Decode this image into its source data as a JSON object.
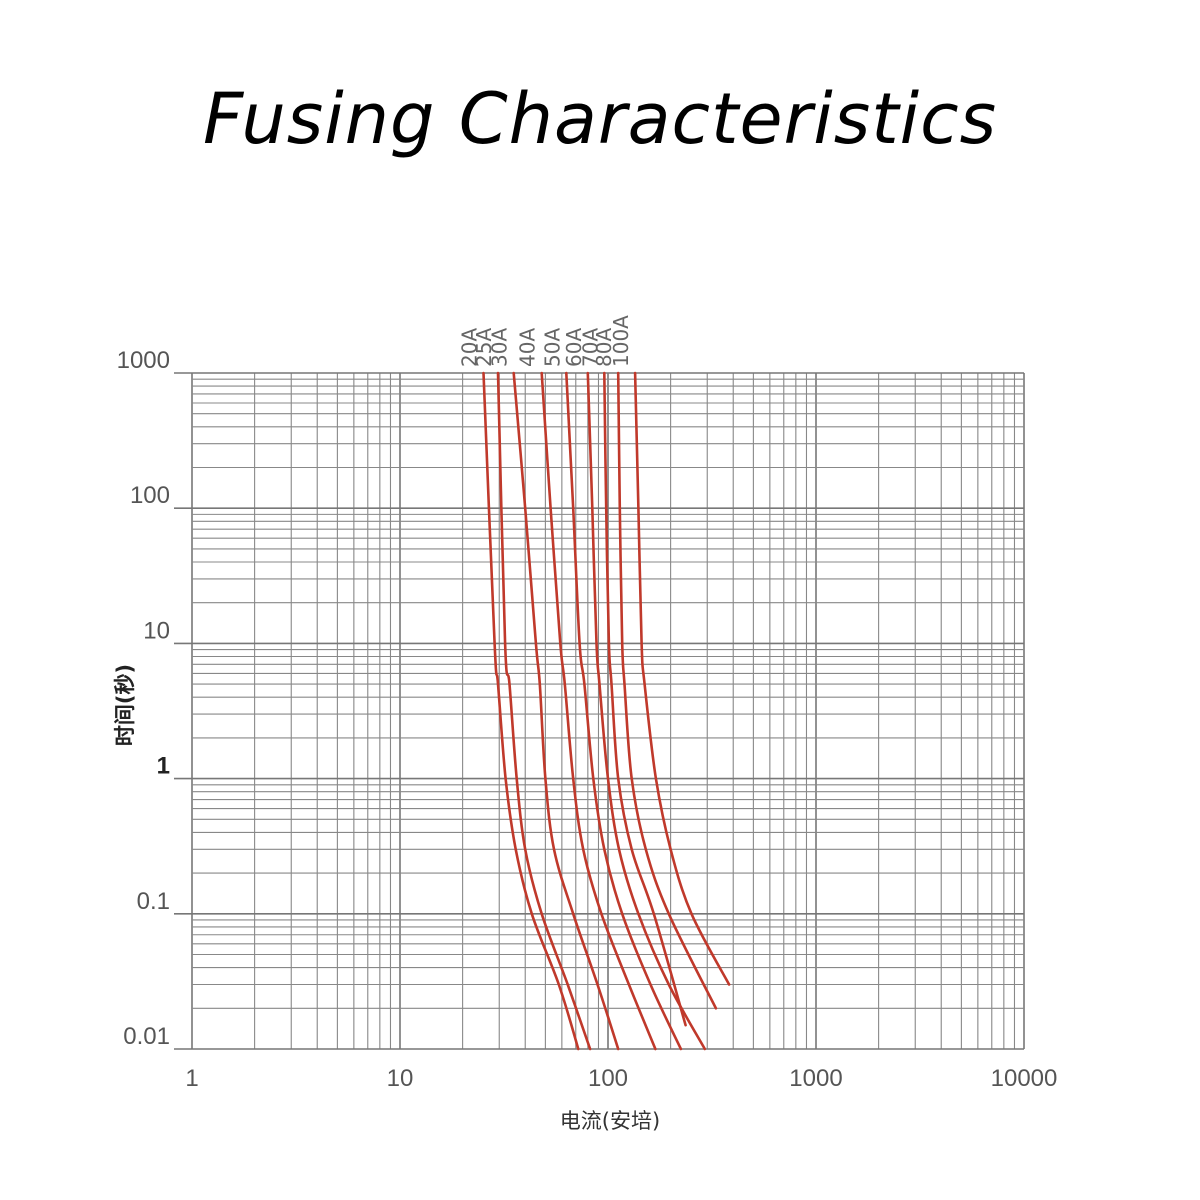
{
  "title": "Fusing Characteristics",
  "chart_data": {
    "type": "line",
    "title": "Fusing Characteristics",
    "xlabel": "电流(安培)",
    "ylabel": "时间(秒)",
    "x_scale": "log",
    "y_scale": "log",
    "xlim": [
      1,
      10000
    ],
    "ylim": [
      0.01,
      1000
    ],
    "x_ticks": [
      "1",
      "10",
      "100",
      "1000",
      "10000"
    ],
    "y_ticks": [
      "0.01",
      "0.1",
      "1",
      "10",
      "100",
      "1000"
    ],
    "grid": true,
    "line_color": "#c0392b",
    "series": [
      {
        "name": "20A",
        "points": [
          [
            25.2,
            1000
          ],
          [
            28.5,
            10
          ],
          [
            29.6,
            5
          ],
          [
            32.2,
            1
          ],
          [
            36,
            0.3
          ],
          [
            43,
            0.1
          ],
          [
            58,
            0.03
          ],
          [
            72,
            0.01
          ]
        ]
      },
      {
        "name": "25A",
        "points": [
          [
            29.6,
            1000
          ],
          [
            32,
            10
          ],
          [
            33.6,
            5
          ],
          [
            36.4,
            1
          ],
          [
            40,
            0.3
          ],
          [
            48,
            0.1
          ],
          [
            64,
            0.03
          ],
          [
            82,
            0.01
          ]
        ]
      },
      {
        "name": "30A",
        "points": [
          [
            35.2,
            1000
          ],
          [
            40,
            100
          ],
          [
            45,
            10
          ],
          [
            47,
            5
          ],
          [
            50,
            1
          ],
          [
            55,
            0.3
          ],
          [
            68,
            0.1
          ],
          [
            89,
            0.03
          ],
          [
            112,
            0.01
          ]
        ]
      },
      {
        "name": "40A",
        "points": [
          [
            48,
            1000
          ],
          [
            53,
            100
          ],
          [
            59,
            10
          ],
          [
            62,
            5
          ],
          [
            68,
            1
          ],
          [
            76,
            0.3
          ],
          [
            93,
            0.1
          ],
          [
            126,
            0.03
          ],
          [
            169,
            0.01
          ]
        ]
      },
      {
        "name": "50A",
        "points": [
          [
            63,
            1000
          ],
          [
            68,
            100
          ],
          [
            73,
            10
          ],
          [
            77,
            5
          ],
          [
            85,
            1
          ],
          [
            96,
            0.3
          ],
          [
            117,
            0.1
          ],
          [
            160,
            0.03
          ],
          [
            224,
            0.01
          ]
        ]
      },
      {
        "name": "60A",
        "points": [
          [
            80,
            1000
          ],
          [
            84,
            100
          ],
          [
            88,
            10
          ],
          [
            91,
            5
          ],
          [
            100,
            1
          ],
          [
            113,
            0.3
          ],
          [
            140,
            0.1
          ],
          [
            196,
            0.03
          ],
          [
            292,
            0.01
          ]
        ]
      },
      {
        "name": "70A",
        "points": [
          [
            96,
            1000
          ],
          [
            98,
            100
          ],
          [
            101,
            10
          ],
          [
            104,
            5
          ],
          [
            112,
            1
          ],
          [
            130,
            0.3
          ],
          [
            166,
            0.1
          ],
          [
            236,
            0.015
          ]
        ]
      },
      {
        "name": "80A",
        "points": [
          [
            112,
            1000
          ],
          [
            114,
            100
          ],
          [
            117,
            10
          ],
          [
            120,
            5
          ],
          [
            130,
            1
          ],
          [
            152,
            0.3
          ],
          [
            196,
            0.1
          ],
          [
            330,
            0.02
          ]
        ]
      },
      {
        "name": "100A",
        "points": [
          [
            135,
            1000
          ],
          [
            140,
            100
          ],
          [
            145,
            10
          ],
          [
            150,
            5
          ],
          [
            170,
            1
          ],
          [
            200,
            0.3
          ],
          [
            252,
            0.1
          ],
          [
            382,
            0.03
          ]
        ]
      }
    ]
  }
}
